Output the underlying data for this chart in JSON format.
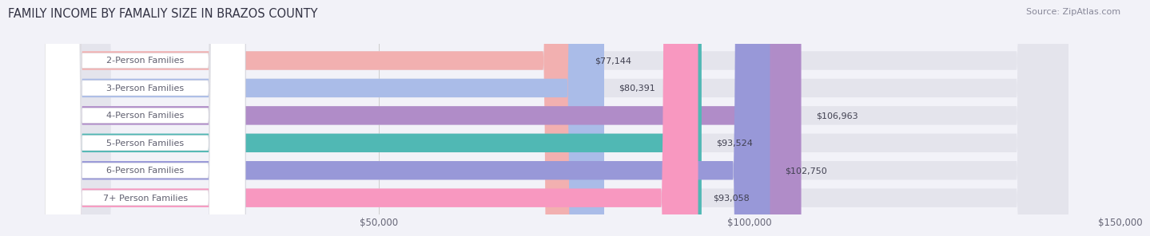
{
  "title": "FAMILY INCOME BY FAMALIY SIZE IN BRAZOS COUNTY",
  "source": "Source: ZipAtlas.com",
  "categories": [
    "2-Person Families",
    "3-Person Families",
    "4-Person Families",
    "5-Person Families",
    "6-Person Families",
    "7+ Person Families"
  ],
  "values": [
    77144,
    80391,
    106963,
    93524,
    102750,
    93058
  ],
  "bar_colors": [
    "#f2b0b0",
    "#aabce8",
    "#b08cc8",
    "#50b8b4",
    "#9898d8",
    "#f898c0"
  ],
  "label_text_colors": [
    "#888888",
    "#888888",
    "#888888",
    "#888888",
    "#888888",
    "#888888"
  ],
  "value_labels": [
    "$77,144",
    "$80,391",
    "$106,963",
    "$93,524",
    "$102,750",
    "$93,058"
  ],
  "xlim_max": 150000,
  "xticks": [
    0,
    50000,
    100000,
    150000
  ],
  "xticklabels": [
    "",
    "$50,000",
    "$100,000",
    "$150,000"
  ],
  "background_color": "#f2f2f8",
  "bar_bg_color": "#e4e4ec",
  "title_fontsize": 10.5,
  "source_fontsize": 8,
  "label_fontsize": 8,
  "value_fontsize": 8,
  "tick_fontsize": 8.5
}
